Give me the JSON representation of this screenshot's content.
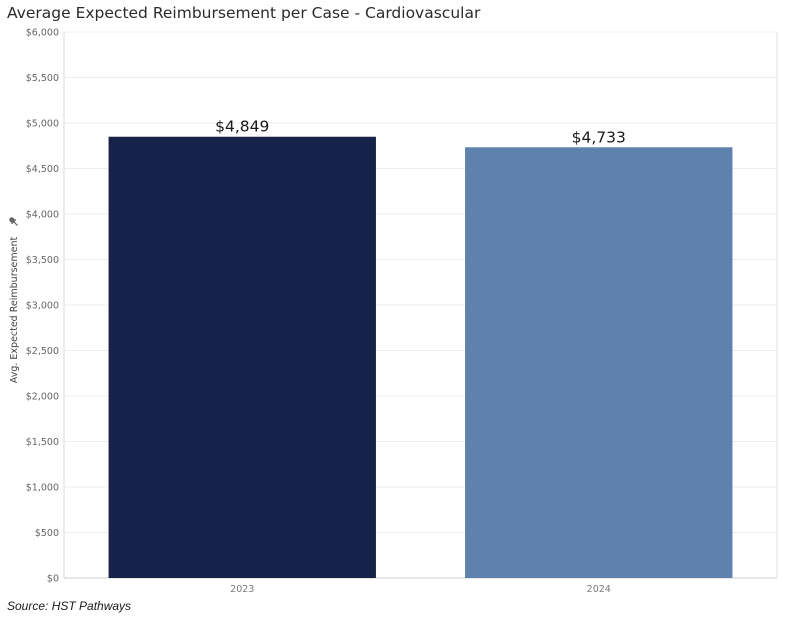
{
  "chart_data": {
    "type": "bar",
    "title": "Average Expected Reimbursement per Case - Cardiovascular",
    "ylabel": "Avg. Expected Reimbursement",
    "xlabel": "",
    "categories": [
      "2023",
      "2024"
    ],
    "values": [
      4849,
      4733
    ],
    "data_labels": [
      "$4,849",
      "$4,733"
    ],
    "bar_colors": [
      "#16224a",
      "#5f81ae"
    ],
    "ylim": [
      0,
      6000
    ],
    "y_ticks": [
      0,
      500,
      1000,
      1500,
      2000,
      2500,
      3000,
      3500,
      4000,
      4500,
      5000,
      5500,
      6000
    ],
    "y_tick_labels": [
      "$0",
      "$500",
      "$1,000",
      "$1,500",
      "$2,000",
      "$2,500",
      "$3,000",
      "$3,500",
      "$4,000",
      "$4,500",
      "$5,000",
      "$5,500",
      "$6,000"
    ],
    "grid": true,
    "legend": "none"
  },
  "source": "Source: HST Pathways",
  "axis_icon": "pin-icon"
}
